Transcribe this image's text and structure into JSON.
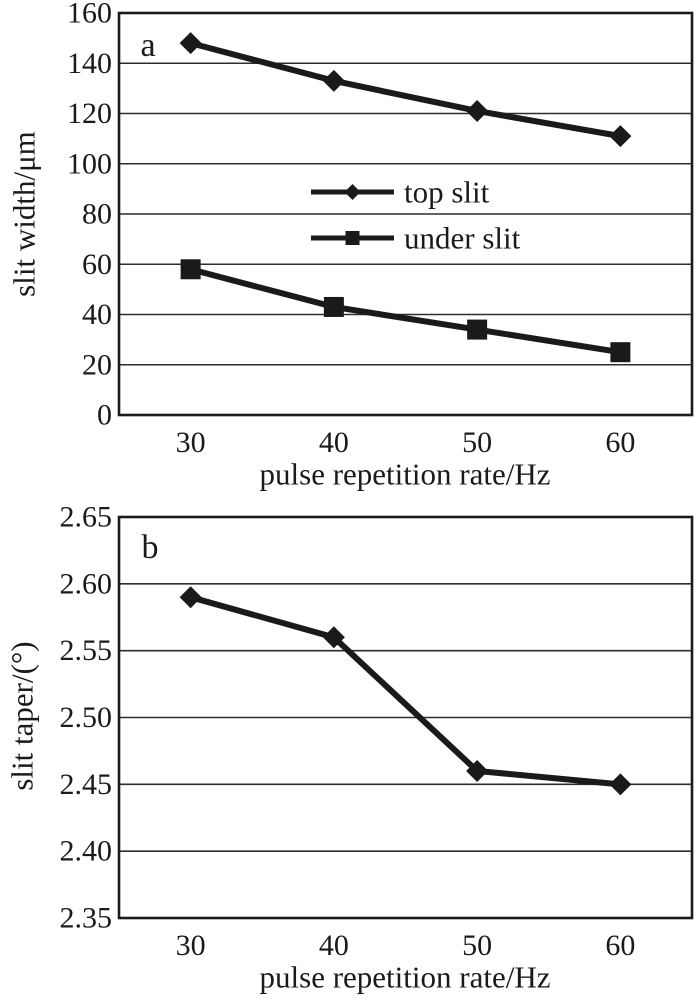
{
  "figure": {
    "background": "#ffffff",
    "ink": "#1a1a1a",
    "grid_color": "#2e2e2e"
  },
  "chart_data": [
    {
      "type": "line",
      "panel_label": "a",
      "xlabel": "pulse repetition rate/Hz",
      "ylabel": "slit width/μm",
      "x": [
        30,
        40,
        50,
        60
      ],
      "xticks": [
        30,
        40,
        50,
        60
      ],
      "xlim": [
        25,
        65
      ],
      "ylim": [
        0,
        160
      ],
      "yticks": [
        0,
        20,
        40,
        60,
        80,
        100,
        120,
        140,
        160
      ],
      "ytick_decimals": 0,
      "grid": true,
      "legend_position": "inside-center",
      "series": [
        {
          "name": "top slit",
          "marker": "diamond",
          "values": [
            148,
            133,
            121,
            111
          ]
        },
        {
          "name": "under slit",
          "marker": "square",
          "values": [
            58,
            43,
            34,
            25
          ]
        }
      ]
    },
    {
      "type": "line",
      "panel_label": "b",
      "xlabel": "pulse repetition rate/Hz",
      "ylabel": "slit taper/(°)",
      "x": [
        30,
        40,
        50,
        60
      ],
      "xticks": [
        30,
        40,
        50,
        60
      ],
      "xlim": [
        25,
        65
      ],
      "ylim": [
        2.35,
        2.65
      ],
      "yticks": [
        2.35,
        2.4,
        2.45,
        2.5,
        2.55,
        2.6,
        2.65
      ],
      "ytick_decimals": 2,
      "grid": true,
      "legend_position": "none",
      "series": [
        {
          "name": "slit taper",
          "marker": "diamond",
          "values": [
            2.59,
            2.56,
            2.46,
            2.45
          ]
        }
      ]
    }
  ]
}
